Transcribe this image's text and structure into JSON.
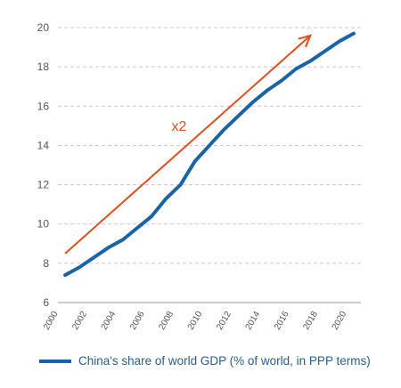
{
  "chart_data": {
    "type": "line",
    "x": [
      2000.5,
      2001.5,
      2002.5,
      2003.5,
      2004.5,
      2005.5,
      2006.5,
      2007.5,
      2008.5,
      2009.5,
      2010.5,
      2011.5,
      2012.5,
      2013.5,
      2014.5,
      2015.5,
      2016.5,
      2017.5,
      2018.5,
      2019.5,
      2020.5
    ],
    "series": [
      {
        "name": "China's share of world GDP (% of world, in PPP terms)",
        "color": "#1a63a8",
        "values": [
          7.4,
          7.8,
          8.3,
          8.8,
          9.2,
          9.8,
          10.4,
          11.3,
          12.0,
          13.2,
          14.0,
          14.8,
          15.5,
          16.2,
          16.8,
          17.3,
          17.9,
          18.3,
          18.8,
          19.3,
          19.7
        ]
      }
    ],
    "arrow": {
      "label": "x2",
      "color": "#e04e1e",
      "x_start": 2000.5,
      "y_start": 8.5,
      "x_end": 2017.5,
      "y_end": 19.6
    },
    "xlim": [
      2000,
      2021
    ],
    "ylim": [
      6,
      20.5
    ],
    "x_ticks": [
      "2000",
      "2002",
      "2004",
      "2006",
      "2008",
      "2010",
      "2012",
      "2014",
      "2016",
      "2018",
      "2020"
    ],
    "y_ticks": [
      "6",
      "8",
      "10",
      "12",
      "14",
      "16",
      "18",
      "20"
    ],
    "grid": "horizontal dashed",
    "legend_position": "bottom"
  },
  "legend": {
    "label": "China's share of world GDP (% of world, in PPP terms)",
    "color": "#1a63a8"
  }
}
